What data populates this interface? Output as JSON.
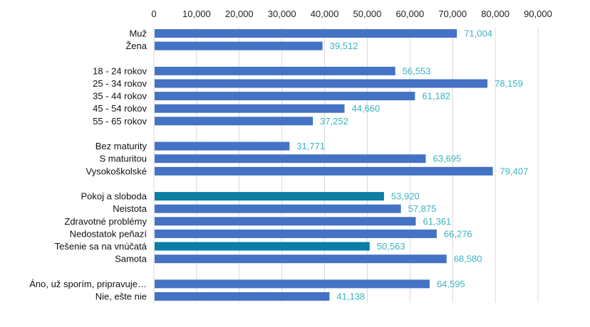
{
  "chart_data": {
    "type": "bar",
    "orientation": "horizontal",
    "title": "",
    "xlabel": "",
    "ylabel": "",
    "xlim": [
      0,
      90000
    ],
    "x_ticks": [
      "0",
      "10,000",
      "20,000",
      "30,000",
      "40,000",
      "50,000",
      "60,000",
      "70,000",
      "80,000",
      "90,000"
    ],
    "x_tick_values": [
      0,
      10000,
      20000,
      30000,
      40000,
      50000,
      60000,
      70000,
      80000,
      90000
    ],
    "x_axis_position": "top",
    "grid": true,
    "legend": "none",
    "colors": {
      "default": "#4472C4",
      "highlight": "#0A7EA4",
      "label": "#3BB2C0",
      "grid": "#D9D9D9"
    },
    "groups": [
      {
        "items": [
          {
            "category": "Muž",
            "value": 71004,
            "label": "71,004",
            "highlight": false
          },
          {
            "category": "Žena",
            "value": 39512,
            "label": "39,512",
            "highlight": false
          }
        ]
      },
      {
        "items": [
          {
            "category": "18 - 24 rokov",
            "value": 56553,
            "label": "56,553",
            "highlight": false
          },
          {
            "category": "25 - 34 rokov",
            "value": 78159,
            "label": "78,159",
            "highlight": false
          },
          {
            "category": "35 - 44 rokov",
            "value": 61182,
            "label": "61,182",
            "highlight": false
          },
          {
            "category": "45 - 54 rokov",
            "value": 44660,
            "label": "44,660",
            "highlight": false
          },
          {
            "category": "55 - 65 rokov",
            "value": 37252,
            "label": "37,252",
            "highlight": false
          }
        ]
      },
      {
        "items": [
          {
            "category": "Bez maturity",
            "value": 31771,
            "label": "31,771",
            "highlight": false
          },
          {
            "category": "S maturitou",
            "value": 63695,
            "label": "63,695",
            "highlight": false
          },
          {
            "category": "Vysokoškolské",
            "value": 79407,
            "label": "79,407",
            "highlight": false
          }
        ]
      },
      {
        "items": [
          {
            "category": "Pokoj a sloboda",
            "value": 53920,
            "label": "53,920",
            "highlight": true
          },
          {
            "category": "Neistota",
            "value": 57875,
            "label": "57,875",
            "highlight": false
          },
          {
            "category": "Zdravotné problémy",
            "value": 61361,
            "label": "61,361",
            "highlight": false
          },
          {
            "category": "Nedostatok peňazí",
            "value": 66276,
            "label": "66,276",
            "highlight": false
          },
          {
            "category": "Tešenie sa na vnúčatá",
            "value": 50563,
            "label": "50,563",
            "highlight": true
          },
          {
            "category": "Samota",
            "value": 68580,
            "label": "68,580",
            "highlight": false
          }
        ]
      },
      {
        "items": [
          {
            "category": "Áno, už sporím, pripravuje…",
            "value": 64595,
            "label": "64,595",
            "highlight": false
          },
          {
            "category": "Nie, ešte nie",
            "value": 41138,
            "label": "41,138",
            "highlight": false
          }
        ]
      }
    ]
  }
}
